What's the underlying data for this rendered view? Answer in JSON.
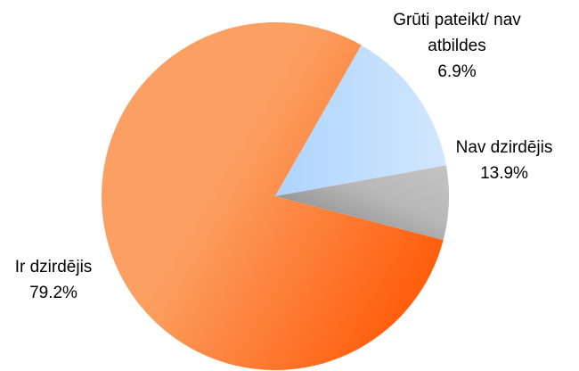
{
  "chart_data": {
    "type": "pie",
    "categories": [
      "Ir dzirdējis",
      "Nav dzirdējis",
      "Grūti pateikt/ nav atbildes"
    ],
    "values": [
      79.2,
      13.9,
      6.9
    ],
    "value_labels": [
      "79.2%",
      "13.9%",
      "6.9%"
    ],
    "colors": [
      "#fb8a45",
      "#bcdcfd",
      "#a8a8a8"
    ]
  }
}
